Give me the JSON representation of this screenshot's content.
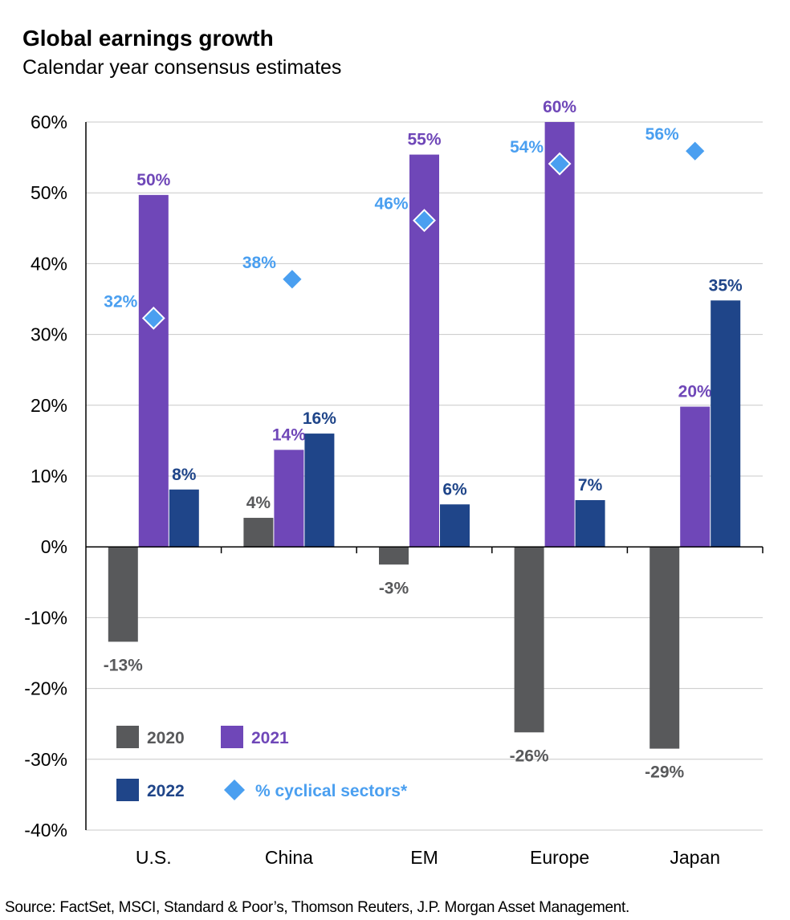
{
  "chart_data": {
    "type": "bar",
    "title": "Global earnings growth",
    "subtitle": "Calendar year consensus estimates",
    "categories": [
      "U.S.",
      "China",
      "EM",
      "Europe",
      "Japan"
    ],
    "series": [
      {
        "name": "2020",
        "color": "#58595b",
        "values": [
          -13.4,
          4.1,
          -2.5,
          -26.2,
          -28.5
        ],
        "labels": [
          "-13%",
          "4%",
          "-3%",
          "-26%",
          "-29%"
        ]
      },
      {
        "name": "2021",
        "color": "#6f47b8",
        "values": [
          49.7,
          13.7,
          55.4,
          60.0,
          19.8
        ],
        "labels": [
          "50%",
          "14%",
          "55%",
          "60%",
          "20%"
        ]
      },
      {
        "name": "2022",
        "color": "#1f4589",
        "values": [
          8.1,
          16.0,
          6.0,
          6.6,
          34.8
        ],
        "labels": [
          "8%",
          "16%",
          "6%",
          "7%",
          "35%"
        ]
      }
    ],
    "markers": {
      "name": "% cyclical sectors*",
      "color": "#4a9ff0",
      "values": [
        32.3,
        37.8,
        46.1,
        54.1,
        55.9
      ],
      "labels": [
        "32%",
        "38%",
        "46%",
        "54%",
        "56%"
      ]
    },
    "ylim": [
      -40,
      60
    ],
    "yticks": [
      60,
      50,
      40,
      30,
      20,
      10,
      0,
      -10,
      -20,
      -30,
      -40
    ],
    "ytick_labels": [
      "60%",
      "50%",
      "40%",
      "30%",
      "20%",
      "10%",
      "0%",
      "-10%",
      "-20%",
      "-30%",
      "-40%"
    ],
    "grid": true,
    "legend_position": "bottom-left"
  },
  "source": "Source: FactSet, MSCI, Standard & Poor’s, Thomson Reuters, J.P. Morgan Asset Management."
}
